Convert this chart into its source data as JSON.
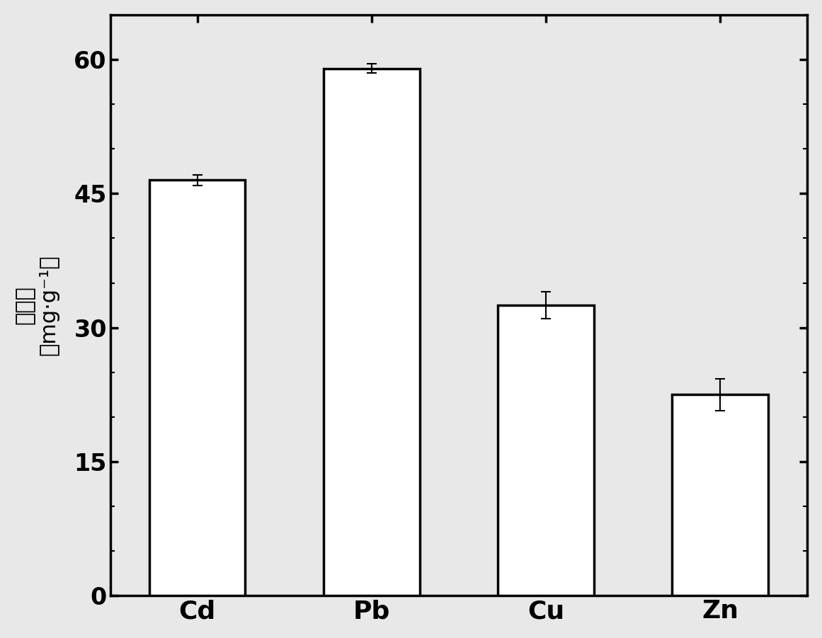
{
  "categories": [
    "Cd",
    "Pb",
    "Cu",
    "Zn"
  ],
  "values": [
    46.5,
    59.0,
    32.5,
    22.5
  ],
  "errors": [
    0.6,
    0.5,
    1.5,
    1.8
  ],
  "bar_color": "#ffffff",
  "bar_edgecolor": "#000000",
  "bar_linewidth": 2.5,
  "error_color": "#000000",
  "error_linewidth": 1.5,
  "error_capsize": 5,
  "ylabel_chinese": "吸附量",
  "ylabel_units": "（mg·g⁻¹）",
  "ylim": [
    0,
    65
  ],
  "yticks": [
    0,
    15,
    30,
    45,
    60
  ],
  "bar_width": 0.55,
  "background_color": "#e8e8e8",
  "plot_bg_color": "#e8e8e8",
  "tick_fontsize": 24,
  "label_fontsize": 22,
  "xtick_fontsize": 26,
  "axis_linewidth": 2.5
}
